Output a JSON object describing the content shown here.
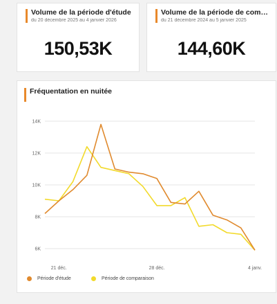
{
  "kpis": [
    {
      "title": "Volume de la période d'étude",
      "subtitle": "du 20 décembre 2025 au 4 janvier 2026",
      "value": "150,53K"
    },
    {
      "title": "Volume de la période de comparaison",
      "subtitle": "du 21 décembre 2024 au 5 janvier 2025",
      "value": "144,60K"
    }
  ],
  "colors": {
    "accent": "#e8892b",
    "study": "#e08a2e",
    "comparison": "#f2da2b"
  },
  "chart_data": {
    "type": "line",
    "title": "Fréquentation en nuitée",
    "xlabel": "",
    "ylabel": "",
    "ylim": [
      6000,
      14000
    ],
    "y_ticks": [
      6000,
      8000,
      10000,
      12000,
      14000
    ],
    "y_tick_labels": [
      "6K",
      "8K",
      "10K",
      "12K",
      "14K"
    ],
    "x_tick_labels": [
      {
        "index": 1,
        "label": "21 déc."
      },
      {
        "index": 8,
        "label": "28 déc."
      },
      {
        "index": 15,
        "label": "4 janv."
      }
    ],
    "grid": true,
    "legend": "bottom-left",
    "series": [
      {
        "name": "Période d'étude",
        "values": [
          8200,
          9000,
          9700,
          10600,
          13800,
          11000,
          10800,
          10700,
          10400,
          8900,
          8800,
          9600,
          8100,
          7800,
          7300,
          5900
        ]
      },
      {
        "name": "Période de comparaison",
        "values": [
          9100,
          9000,
          10200,
          12400,
          11100,
          10900,
          10700,
          9900,
          8700,
          8700,
          9200,
          7400,
          7500,
          7000,
          6900,
          5900
        ]
      }
    ]
  }
}
